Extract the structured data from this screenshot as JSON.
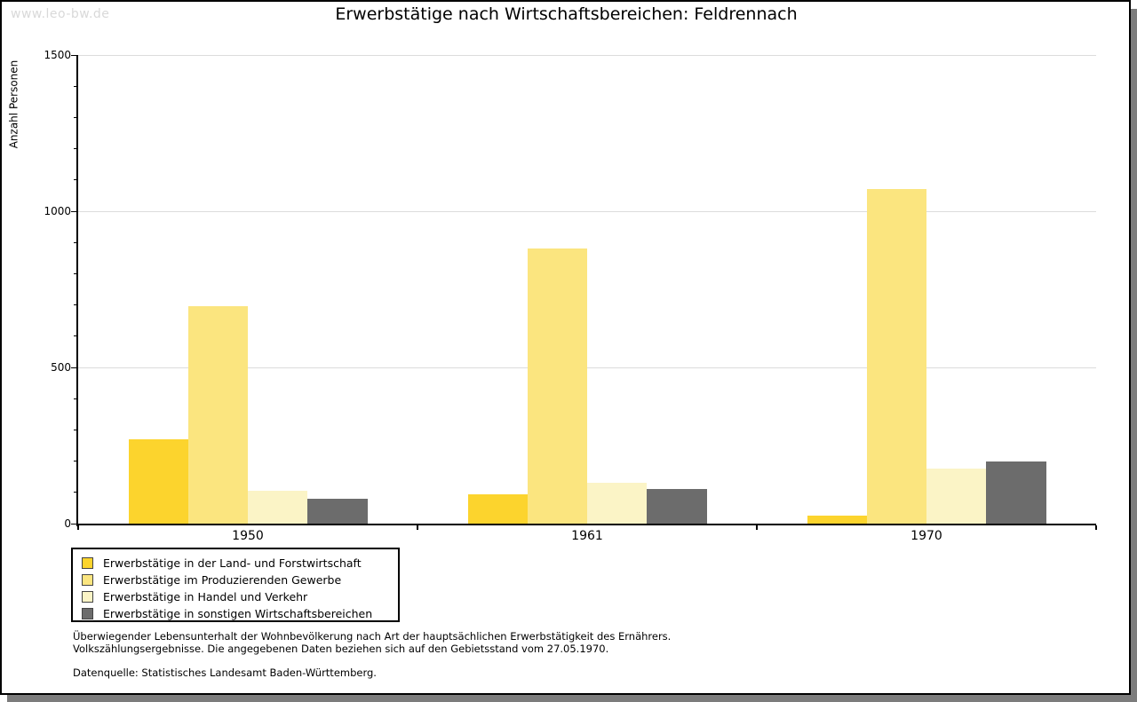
{
  "watermark": "www.leo-bw.de",
  "title": "Erwerbstätige nach Wirtschaftsbereichen: Feldrennach",
  "chart_data": {
    "type": "bar",
    "title": "Erwerbstätige nach Wirtschaftsbereichen: Feldrennach",
    "categories": [
      "1950",
      "1961",
      "1970"
    ],
    "series": [
      {
        "name": "Erwerbstätige in der Land- und Forstwirtschaft",
        "color": "#FCD42D",
        "values": [
          270,
          95,
          25
        ]
      },
      {
        "name": "Erwerbstätige im Produzierenden Gewerbe",
        "color": "#FBE57F",
        "values": [
          695,
          880,
          1070
        ]
      },
      {
        "name": "Erwerbstätige in Handel und Verkehr",
        "color": "#FBF4C6",
        "values": [
          105,
          130,
          175
        ]
      },
      {
        "name": "Erwerbstätige in sonstigen Wirtschaftsbereichen",
        "color": "#6C6C6C",
        "values": [
          80,
          110,
          200
        ]
      }
    ],
    "xlabel": "",
    "ylabel": "Anzahl Personen",
    "ylim": [
      0,
      1500
    ],
    "yticks": [
      0,
      500,
      1000,
      1500
    ],
    "y_minor_step": 100,
    "grid": "horizontal-major-gridlines",
    "legend_position": "bottom-left"
  },
  "footnotes": [
    "Überwiegender Lebensunterhalt der Wohnbevölkerung nach Art der hauptsächlichen Erwerbstätigkeit des Ernährers.",
    "Volkszählungsergebnisse. Die angegebenen Daten beziehen sich auf den Gebietsstand vom 27.05.1970."
  ],
  "datasource": "Datenquelle: Statistisches Landesamt Baden-Württemberg.",
  "colors": {
    "background": "#FFFFFF",
    "frame_border": "#000000",
    "shadow": "#7C7C7C",
    "watermark": "#D9D9D9",
    "axis": "#000000",
    "grid": "#DCDCDC",
    "legend_border": "#000000",
    "swatch_border": "#444444"
  }
}
